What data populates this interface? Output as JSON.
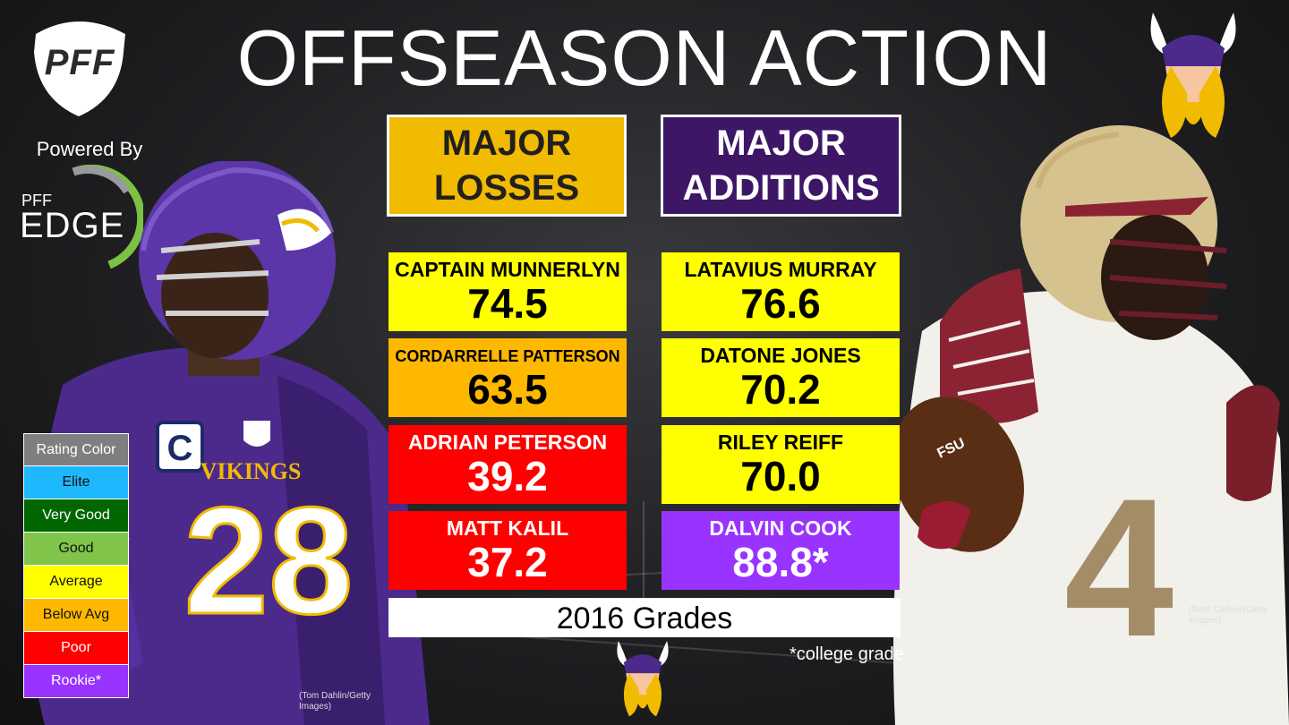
{
  "title": "OFFSEASON ACTION",
  "branding": {
    "logo_text": "PFF",
    "powered_by": "Powered By",
    "edge_small": "PFF",
    "edge_big": "EDGE"
  },
  "headers": {
    "losses": "MAJOR LOSSES",
    "additions": "MAJOR ADDITIONS"
  },
  "losses": [
    {
      "name": "CAPTAIN MUNNERLYN",
      "grade": "74.5",
      "color": "#ffff00"
    },
    {
      "name": "CORDARRELLE PATTERSON",
      "grade": "63.5",
      "color": "#ffb800"
    },
    {
      "name": "ADRIAN PETERSON",
      "grade": "39.2",
      "color": "#ff0000"
    },
    {
      "name": "MATT KALIL",
      "grade": "37.2",
      "color": "#ff0000"
    }
  ],
  "additions": [
    {
      "name": "LATAVIUS MURRAY",
      "grade": "76.6",
      "color": "#ffff00"
    },
    {
      "name": "DATONE JONES",
      "grade": "70.2",
      "color": "#ffff00"
    },
    {
      "name": "RILEY REIFF",
      "grade": "70.0",
      "color": "#ffff00"
    },
    {
      "name": "DALVIN COOK",
      "grade": "88.8*",
      "color": "#9933ff"
    }
  ],
  "grades_label": "2016 Grades",
  "footnote": "*college grade",
  "legend": [
    {
      "label": "Rating Color",
      "color": "#7f7f7f"
    },
    {
      "label": "Elite",
      "color": "#1eb8ff"
    },
    {
      "label": "Very Good",
      "color": "#006600"
    },
    {
      "label": "Good",
      "color": "#80c44a"
    },
    {
      "label": "Average",
      "color": "#ffff00"
    },
    {
      "label": "Below Avg",
      "color": "#ffb800"
    },
    {
      "label": "Poor",
      "color": "#ff0000"
    },
    {
      "label": "Rookie*",
      "color": "#9933ff"
    }
  ],
  "credits": {
    "left_1": "(Tom Dahlin/Getty",
    "left_2": "Images)",
    "right_1": "(Brett Carlsen/Getty",
    "right_2": "Images)"
  },
  "left_player": {
    "jersey_number": "28",
    "team_text": "VIKINGS",
    "captain_patch": "C"
  },
  "right_player": {
    "jersey_number": "4",
    "ball_text": "FSU"
  }
}
